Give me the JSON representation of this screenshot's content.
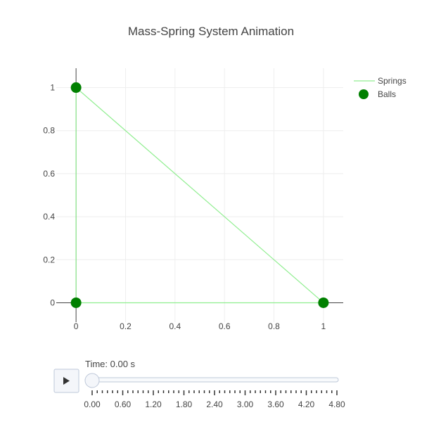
{
  "chart_data": {
    "type": "scatter",
    "title": "Mass-Spring System Animation",
    "xlabel": "",
    "ylabel": "",
    "xlim": [
      -0.08,
      1.08
    ],
    "ylim": [
      -0.09,
      1.09
    ],
    "x_ticks": [
      0,
      0.2,
      0.4,
      0.6,
      0.8,
      1
    ],
    "x_tick_labels": [
      "0",
      "0.2",
      "0.4",
      "0.6",
      "0.8",
      "1"
    ],
    "y_ticks": [
      0,
      0.2,
      0.4,
      0.6,
      0.8,
      1
    ],
    "y_tick_labels": [
      "0",
      "0.2",
      "0.4",
      "0.6",
      "0.8",
      "1"
    ],
    "grid": true,
    "legend_position": "top-right",
    "series": [
      {
        "name": "Springs",
        "mode": "lines",
        "color": "#90ee90",
        "segments": [
          [
            [
              0,
              1
            ],
            [
              1,
              0
            ]
          ],
          [
            [
              0,
              0
            ],
            [
              1,
              0
            ]
          ],
          [
            [
              0,
              0
            ],
            [
              0,
              1
            ]
          ]
        ]
      },
      {
        "name": "Balls",
        "mode": "markers",
        "color": "#008000",
        "x": [
          0,
          1,
          0
        ],
        "y": [
          1,
          0,
          0
        ]
      }
    ]
  },
  "slider": {
    "current_label": "Time: 0.00 s",
    "tick_labels": [
      "0.00",
      "0.60",
      "1.20",
      "1.80",
      "2.40",
      "3.00",
      "3.60",
      "4.20",
      "4.80"
    ],
    "value": 0
  },
  "controls": {
    "play_icon": "play-icon"
  }
}
